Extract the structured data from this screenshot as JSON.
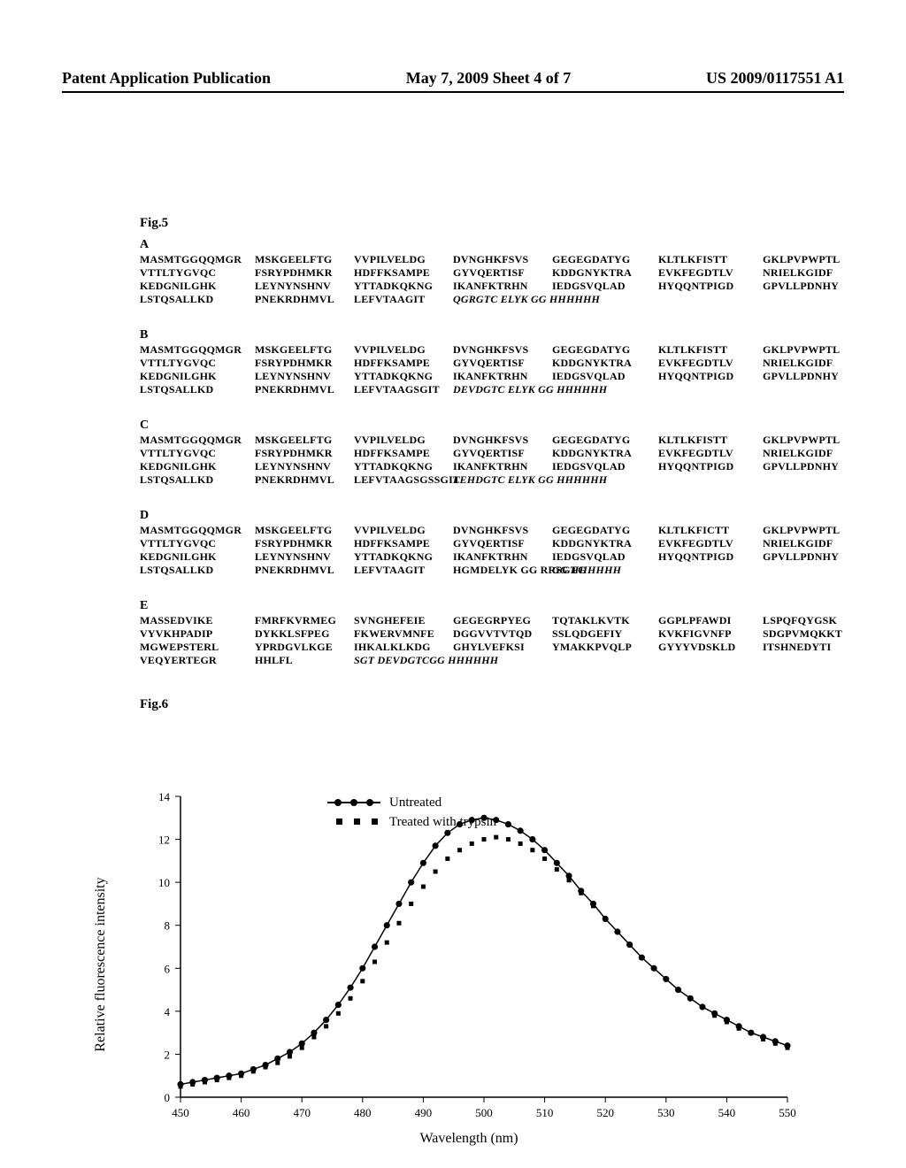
{
  "header": {
    "left": "Patent Application Publication",
    "center": "May 7, 2009  Sheet 4 of 7",
    "right": "US 2009/0117551 A1"
  },
  "fig5": {
    "label": "Fig.5",
    "panels": {
      "A": {
        "rows": [
          [
            "MASMTGGQQMGR",
            "MSKGEELFTG",
            "VVPILVELDG",
            "DVNGHKFSVS",
            "GEGEGDATYG",
            "KLTLKFISTT",
            "GKLPVPWPTL"
          ],
          [
            "VTTLTYGVQC",
            "FSRYPDHMKR",
            "HDFFKSAMPE",
            "GYVQERTISF",
            "KDDGNYKTRA",
            "EVKFEGDTLV",
            "NRIELKGIDF"
          ],
          [
            "KEDGNILGHK",
            "LEYNYNSHNV",
            "YTTADKQKNG",
            "IKANFKTRHN",
            "IEDGSVQLAD",
            "HYQQNTPIGD",
            "GPVLLPDNHY"
          ],
          [
            "LSTQSALLKD",
            "PNEKRDHMVL",
            "LEFVTAAGIT",
            "QGRGTC  ELYK GG HHHHHH",
            "",
            "",
            ""
          ]
        ],
        "last_italic_start_col": 3
      },
      "B": {
        "rows": [
          [
            "MASMTGGQQMGR",
            "MSKGEELFTG",
            "VVPILVELDG",
            "DVNGHKFSVS",
            "GEGEGDATYG",
            "KLTLKFISTT",
            "GKLPVPWPTL"
          ],
          [
            "VTTLTYGVQC",
            "FSRYPDHMKR",
            "HDFFKSAMPE",
            "GYVQERTISF",
            "KDDGNYKTRA",
            "EVKFEGDTLV",
            "NRIELKGIDF"
          ],
          [
            "KEDGNILGHK",
            "LEYNYNSHNV",
            "YTTADKQKNG",
            "IKANFKTRHN",
            "IEDGSVQLAD",
            "HYQQNTPIGD",
            "GPVLLPDNHY"
          ],
          [
            "LSTQSALLKD",
            "PNEKRDHMVL",
            "LEFVTAAGSGIT",
            "DEVDGTC  ELYK GG HHHHHH",
            "",
            "",
            ""
          ]
        ],
        "last_italic_start_col": 3
      },
      "C": {
        "rows": [
          [
            "MASMTGGQQMGR",
            "MSKGEELFTG",
            "VVPILVELDG",
            "DVNGHKFSVS",
            "GEGEGDATYG",
            "KLTLKFISTT",
            "GKLPVPWPTL"
          ],
          [
            "VTTLTYGVQC",
            "FSRYPDHMKR",
            "HDFFKSAMPE",
            "GYVQERTISF",
            "KDDGNYKTRA",
            "EVKFEGDTLV",
            "NRIELKGIDF"
          ],
          [
            "KEDGNILGHK",
            "LEYNYNSHNV",
            "YTTADKQKNG",
            "IKANFKTRHN",
            "IEDGSVQLAD",
            "HYQQNTPIGD",
            "GPVLLPDNHY"
          ],
          [
            "LSTQSALLKD",
            "PNEKRDHMVL",
            "LEFVTAAGSGSSGIT",
            "LEHDGTC  ELYK GG HHHHHH",
            "",
            "",
            ""
          ]
        ],
        "last_italic_start_col": 3
      },
      "D": {
        "rows": [
          [
            "MASMTGGQQMGR",
            "MSKGEELFTG",
            "VVPILVELDG",
            "DVNGHKFSVS",
            "GEGEGDATYG",
            "KLTLKFICTT",
            "GKLPVPWPTL"
          ],
          [
            "VTTLTYGVQC",
            "FSRYPDHMKR",
            "HDFFKSAMPE",
            "GYVQERTISF",
            "KDDGNYKTRA",
            "EVKFEGDTLV",
            "NRIELKGIDF"
          ],
          [
            "KEDGNILGHK",
            "LEYNYNSHNV",
            "YTTADKQKNG",
            "IKANFKTRHN",
            "IEDGSVQLAD",
            "HYQQNTPIGD",
            "GPVLLPDNHY"
          ],
          [
            "LSTQSALLKD",
            "PNEKRDHMVL",
            "LEFVTAAGIT",
            "HGMDELYK GG RRSGTC",
            "GG HHHHHH",
            "",
            ""
          ]
        ],
        "last_italic_start_col": 4
      },
      "E": {
        "rows": [
          [
            "MASSEDVIKE",
            "FMRFKVRMEG",
            "SVNGHEFEIE",
            "GEGEGRPYEG",
            "TQTAKLKVTK",
            "GGPLPFAWDI",
            "LSPQFQYGSK"
          ],
          [
            "VYVKHPADIP",
            "DYKKLSFPEG",
            "FKWERVMNFE",
            "DGGVVTVTQD",
            "SSLQDGEFIY",
            "KVKFIGVNFP",
            "SDGPVMQKKT"
          ],
          [
            "MGWEPSTERL",
            "YPRDGVLKGE",
            "IHKALKLKDG",
            "GHYLVEFKSI",
            "YMAKKPVQLP",
            "GYYYVDSKLD",
            "ITSHNEDYTI"
          ],
          [
            "VEQYERTEGR",
            "HHLFL",
            "SGT DEVDGTCGG  HHHHHH",
            "",
            "",
            "",
            ""
          ]
        ],
        "last_italic_start_col": 2
      }
    }
  },
  "fig6": {
    "label": "Fig.6",
    "chart": {
      "type": "line",
      "xlabel": "Wavelength (nm)",
      "ylabel": "Relative fluorescence intensity",
      "xlim": [
        450,
        550
      ],
      "ylim": [
        0,
        14
      ],
      "xtick_step": 10,
      "ytick_step": 2,
      "background_color": "#ffffff",
      "axis_color": "#000000",
      "tick_fontsize": 13,
      "label_fontsize": 16,
      "legend": [
        {
          "label": "Untreated",
          "marker": "circle",
          "line": true,
          "color": "#000000"
        },
        {
          "label": "Treated with trypsin",
          "marker": "square",
          "line": false,
          "color": "#000000"
        }
      ],
      "series": [
        {
          "name": "untreated",
          "x": [
            450,
            452,
            454,
            456,
            458,
            460,
            462,
            464,
            466,
            468,
            470,
            472,
            474,
            476,
            478,
            480,
            482,
            484,
            486,
            488,
            490,
            492,
            494,
            496,
            498,
            500,
            502,
            504,
            506,
            508,
            510,
            512,
            514,
            516,
            518,
            520,
            522,
            524,
            526,
            528,
            530,
            532,
            534,
            536,
            538,
            540,
            542,
            544,
            546,
            548,
            550
          ],
          "y": [
            0.6,
            0.7,
            0.8,
            0.9,
            1.0,
            1.1,
            1.3,
            1.5,
            1.8,
            2.1,
            2.5,
            3.0,
            3.6,
            4.3,
            5.1,
            6.0,
            7.0,
            8.0,
            9.0,
            10.0,
            10.9,
            11.7,
            12.3,
            12.7,
            12.9,
            13.0,
            12.9,
            12.7,
            12.4,
            12.0,
            11.5,
            10.9,
            10.3,
            9.6,
            9.0,
            8.3,
            7.7,
            7.1,
            6.5,
            6.0,
            5.5,
            5.0,
            4.6,
            4.2,
            3.9,
            3.6,
            3.3,
            3.0,
            2.8,
            2.6,
            2.4
          ],
          "color": "#000000",
          "marker": "circle",
          "markersize": 5,
          "linewidth": 1.5
        },
        {
          "name": "trypsin",
          "x": [
            450,
            452,
            454,
            456,
            458,
            460,
            462,
            464,
            466,
            468,
            470,
            472,
            474,
            476,
            478,
            480,
            482,
            484,
            486,
            488,
            490,
            492,
            494,
            496,
            498,
            500,
            502,
            504,
            506,
            508,
            510,
            512,
            514,
            516,
            518,
            520,
            522,
            524,
            526,
            528,
            530,
            532,
            534,
            536,
            538,
            540,
            542,
            544,
            546,
            548,
            550
          ],
          "y": [
            0.5,
            0.6,
            0.7,
            0.8,
            0.9,
            1.0,
            1.2,
            1.4,
            1.6,
            1.9,
            2.3,
            2.8,
            3.3,
            3.9,
            4.6,
            5.4,
            6.3,
            7.2,
            8.1,
            9.0,
            9.8,
            10.5,
            11.1,
            11.5,
            11.8,
            12.0,
            12.1,
            12.0,
            11.8,
            11.5,
            11.1,
            10.6,
            10.1,
            9.5,
            8.9,
            8.3,
            7.7,
            7.1,
            6.5,
            6.0,
            5.5,
            5.0,
            4.6,
            4.2,
            3.8,
            3.5,
            3.2,
            3.0,
            2.7,
            2.5,
            2.3
          ],
          "color": "#000000",
          "marker": "square",
          "markersize": 5,
          "linewidth": 0
        }
      ]
    }
  }
}
